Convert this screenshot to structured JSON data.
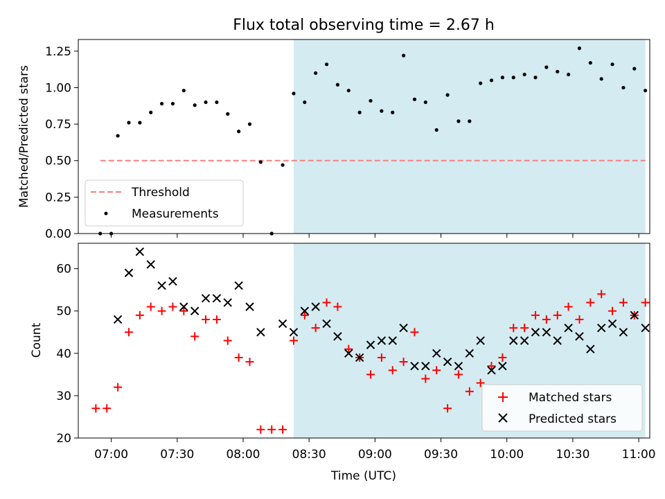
{
  "chart_data": [
    {
      "type": "scatter",
      "title": "Flux total observing time = 2.67 h",
      "ylabel": "Matched/Predicted stars",
      "xlabel": "",
      "ylim": [
        0,
        1.33
      ],
      "yticks": [
        "0.00",
        "0.25",
        "0.50",
        "0.75",
        "1.00",
        "1.25"
      ],
      "grid": false,
      "legend": "lower-left",
      "shaded_interval": [
        "08:23",
        "11:03"
      ],
      "shade_color": "#d4ebf1",
      "threshold": {
        "name": "Threshold",
        "y": 0.5,
        "x_start": "06:55",
        "x_end": "11:03",
        "color": "#f78080"
      },
      "series": [
        {
          "name": "Measurements",
          "color": "#000000",
          "x": [
            "06:55",
            "07:00",
            "07:03",
            "07:08",
            "07:13",
            "07:18",
            "07:23",
            "07:28",
            "07:33",
            "07:38",
            "07:43",
            "07:48",
            "07:53",
            "07:58",
            "08:03",
            "08:08",
            "08:13",
            "08:18",
            "08:23",
            "08:28",
            "08:33",
            "08:38",
            "08:43",
            "08:48",
            "08:53",
            "08:58",
            "09:03",
            "09:08",
            "09:13",
            "09:18",
            "09:23",
            "09:28",
            "09:33",
            "09:38",
            "09:43",
            "09:48",
            "09:53",
            "09:58",
            "10:03",
            "10:08",
            "10:13",
            "10:18",
            "10:23",
            "10:28",
            "10:33",
            "10:38",
            "10:43",
            "10:48",
            "10:53",
            "10:58",
            "11:03"
          ],
          "values": [
            0.0,
            0.0,
            0.67,
            0.76,
            0.76,
            0.83,
            0.89,
            0.89,
            0.98,
            0.88,
            0.9,
            0.9,
            0.82,
            0.7,
            0.75,
            0.49,
            0.0,
            0.47,
            0.96,
            0.9,
            1.1,
            1.16,
            1.02,
            0.98,
            0.83,
            0.91,
            0.84,
            0.83,
            1.22,
            0.92,
            0.9,
            0.71,
            0.95,
            0.77,
            0.77,
            1.03,
            1.05,
            1.07,
            1.07,
            1.09,
            1.07,
            1.14,
            1.11,
            1.09,
            1.27,
            1.17,
            1.06,
            1.16,
            1.0,
            1.13,
            0.98
          ]
        }
      ]
    },
    {
      "type": "scatter",
      "title": "",
      "xlabel": "Time (UTC)",
      "ylabel": "Count",
      "ylim": [
        20,
        66
      ],
      "yticks": [
        "20",
        "30",
        "40",
        "50",
        "60"
      ],
      "xticks": [
        "07:00",
        "07:30",
        "08:00",
        "08:30",
        "09:00",
        "09:30",
        "10:00",
        "10:30",
        "11:00"
      ],
      "xlim": [
        "06:45",
        "11:05"
      ],
      "grid": false,
      "legend": "lower-right",
      "shaded_interval": [
        "08:23",
        "11:03"
      ],
      "shade_color": "#d4ebf1",
      "series": [
        {
          "name": "Matched stars",
          "marker": "plus",
          "color": "#ff0000",
          "x": [
            "06:53",
            "06:58",
            "07:03",
            "07:08",
            "07:13",
            "07:18",
            "07:23",
            "07:28",
            "07:33",
            "07:38",
            "07:43",
            "07:48",
            "07:53",
            "07:58",
            "08:03",
            "08:08",
            "08:13",
            "08:18",
            "08:23",
            "08:28",
            "08:33",
            "08:38",
            "08:43",
            "08:48",
            "08:53",
            "08:58",
            "09:03",
            "09:08",
            "09:13",
            "09:18",
            "09:23",
            "09:28",
            "09:33",
            "09:38",
            "09:43",
            "09:48",
            "09:53",
            "09:58",
            "10:03",
            "10:08",
            "10:13",
            "10:18",
            "10:23",
            "10:28",
            "10:33",
            "10:38",
            "10:43",
            "10:48",
            "10:53",
            "10:58",
            "11:03"
          ],
          "values": [
            27,
            27,
            32,
            45,
            49,
            51,
            50,
            51,
            50,
            44,
            48,
            48,
            43,
            39,
            38,
            22,
            22,
            22,
            43,
            49,
            46,
            52,
            51,
            41,
            39,
            35,
            39,
            36,
            38,
            45,
            34,
            36,
            27,
            35,
            31,
            33,
            37,
            39,
            46,
            46,
            49,
            48,
            49,
            51,
            48,
            52,
            54,
            50,
            52,
            49,
            52
          ]
        },
        {
          "name": "Predicted stars",
          "marker": "x",
          "color": "#000000",
          "x": [
            "07:03",
            "07:08",
            "07:13",
            "07:18",
            "07:23",
            "07:28",
            "07:33",
            "07:38",
            "07:43",
            "07:48",
            "07:53",
            "07:58",
            "08:03",
            "08:08",
            "08:18",
            "08:23",
            "08:28",
            "08:33",
            "08:38",
            "08:43",
            "08:48",
            "08:53",
            "08:58",
            "09:03",
            "09:08",
            "09:13",
            "09:18",
            "09:23",
            "09:28",
            "09:33",
            "09:38",
            "09:43",
            "09:48",
            "09:53",
            "09:58",
            "10:03",
            "10:08",
            "10:13",
            "10:18",
            "10:23",
            "10:28",
            "10:33",
            "10:38",
            "10:43",
            "10:48",
            "10:53",
            "10:58",
            "11:03"
          ],
          "values": [
            48,
            59,
            64,
            61,
            56,
            57,
            51,
            50,
            53,
            53,
            52,
            56,
            51,
            45,
            47,
            45,
            50,
            51,
            47,
            44,
            40,
            39,
            42,
            43,
            43,
            46,
            37,
            37,
            40,
            38,
            37,
            40,
            43,
            36,
            37,
            43,
            43,
            45,
            45,
            43,
            46,
            44,
            41,
            46,
            47,
            45,
            49,
            46
          ]
        }
      ]
    }
  ]
}
